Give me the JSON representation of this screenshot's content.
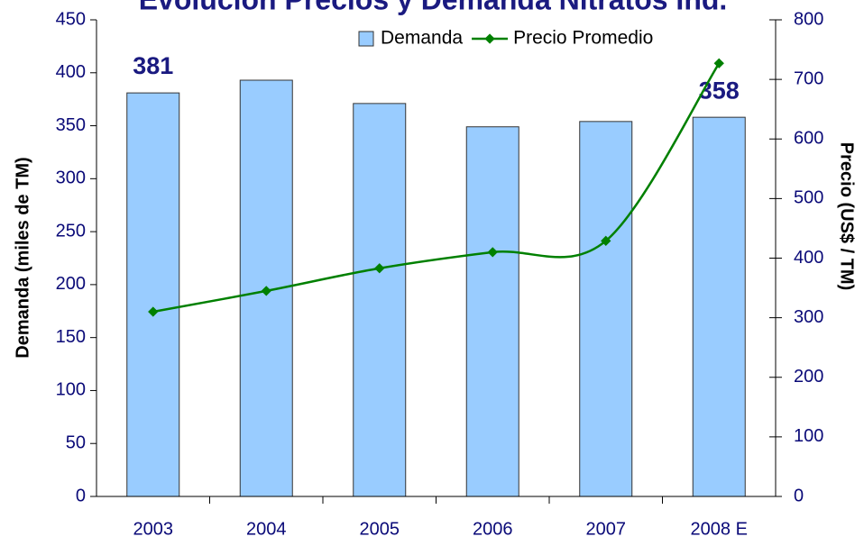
{
  "chart_data": {
    "type": "bar_line",
    "title": "Evolución Precios y Demanda Nitratos Ind.",
    "categories": [
      "2003",
      "2004",
      "2005",
      "2006",
      "2007",
      "2008 E"
    ],
    "series": [
      {
        "name": "Demanda",
        "type": "bar",
        "color": "#99ccff",
        "values": [
          381,
          393,
          371,
          349,
          354,
          358
        ],
        "value_labels": [
          "381",
          null,
          null,
          null,
          null,
          "358"
        ]
      },
      {
        "name": "Precio Promedio",
        "type": "line",
        "axis": "y2",
        "color": "#008000",
        "values": [
          310,
          345,
          383,
          410,
          429,
          727
        ]
      }
    ],
    "ylabel": "Demanda (miles de TM)",
    "y2label": "Precio (US$ / TM)",
    "ylim": [
      0,
      450
    ],
    "yticks": [
      0,
      50,
      100,
      150,
      200,
      250,
      300,
      350,
      400,
      450
    ],
    "y2lim": [
      0,
      800
    ],
    "y2ticks": [
      0,
      100,
      200,
      300,
      400,
      500,
      600,
      700,
      800
    ],
    "legend": "top",
    "grid": false
  }
}
